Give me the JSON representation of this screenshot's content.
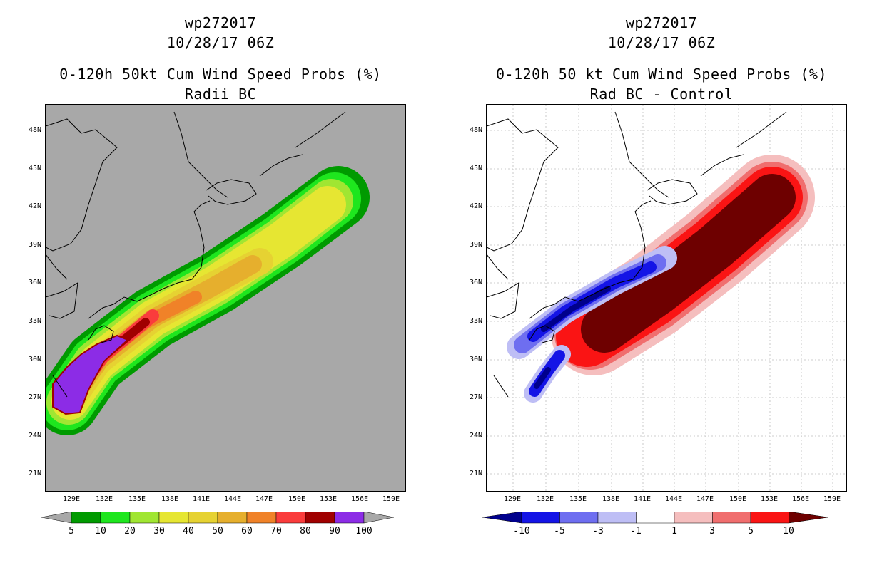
{
  "left": {
    "title_line1": "wp272017",
    "title_line2": "10/28/17 06Z",
    "title_line3": "0-120h 50kt Cum Wind Speed Probs (%)",
    "title_line4": "Radii BC",
    "background_color": "#a8a8a8",
    "colorbar": {
      "colors": [
        "#009a00",
        "#1ee61e",
        "#a0e632",
        "#e6e632",
        "#e6d232",
        "#e6af2d",
        "#f08228",
        "#fa3c3c",
        "#a00000",
        "#8c2ce6"
      ],
      "labels": [
        "5",
        "10",
        "20",
        "30",
        "40",
        "50",
        "60",
        "70",
        "80",
        "90",
        "100"
      ]
    }
  },
  "right": {
    "title_line1": "wp272017",
    "title_line2": "10/28/17 06Z",
    "title_line3": "0-120h 50 kt Cum Wind Speed Probs (%)",
    "title_line4": "Rad BC - Control",
    "background_color": "#ffffff",
    "colorbar": {
      "colors": [
        "#1414e6",
        "#6e6ef0",
        "#bebef5",
        "#ffffff",
        "#f5bebe",
        "#f06e6e",
        "#fa1414"
      ],
      "end_colors": [
        "#00008c",
        "#6e0000"
      ],
      "labels": [
        "-10",
        "-5",
        "-3",
        "-1",
        "1",
        "3",
        "5",
        "10"
      ]
    }
  },
  "lat_labels": [
    "48N",
    "45N",
    "42N",
    "39N",
    "36N",
    "33N",
    "30N",
    "27N",
    "24N",
    "21N"
  ],
  "lon_labels": [
    "129E",
    "132E",
    "135E",
    "138E",
    "141E",
    "144E",
    "147E",
    "150E",
    "153E",
    "156E",
    "159E"
  ]
}
